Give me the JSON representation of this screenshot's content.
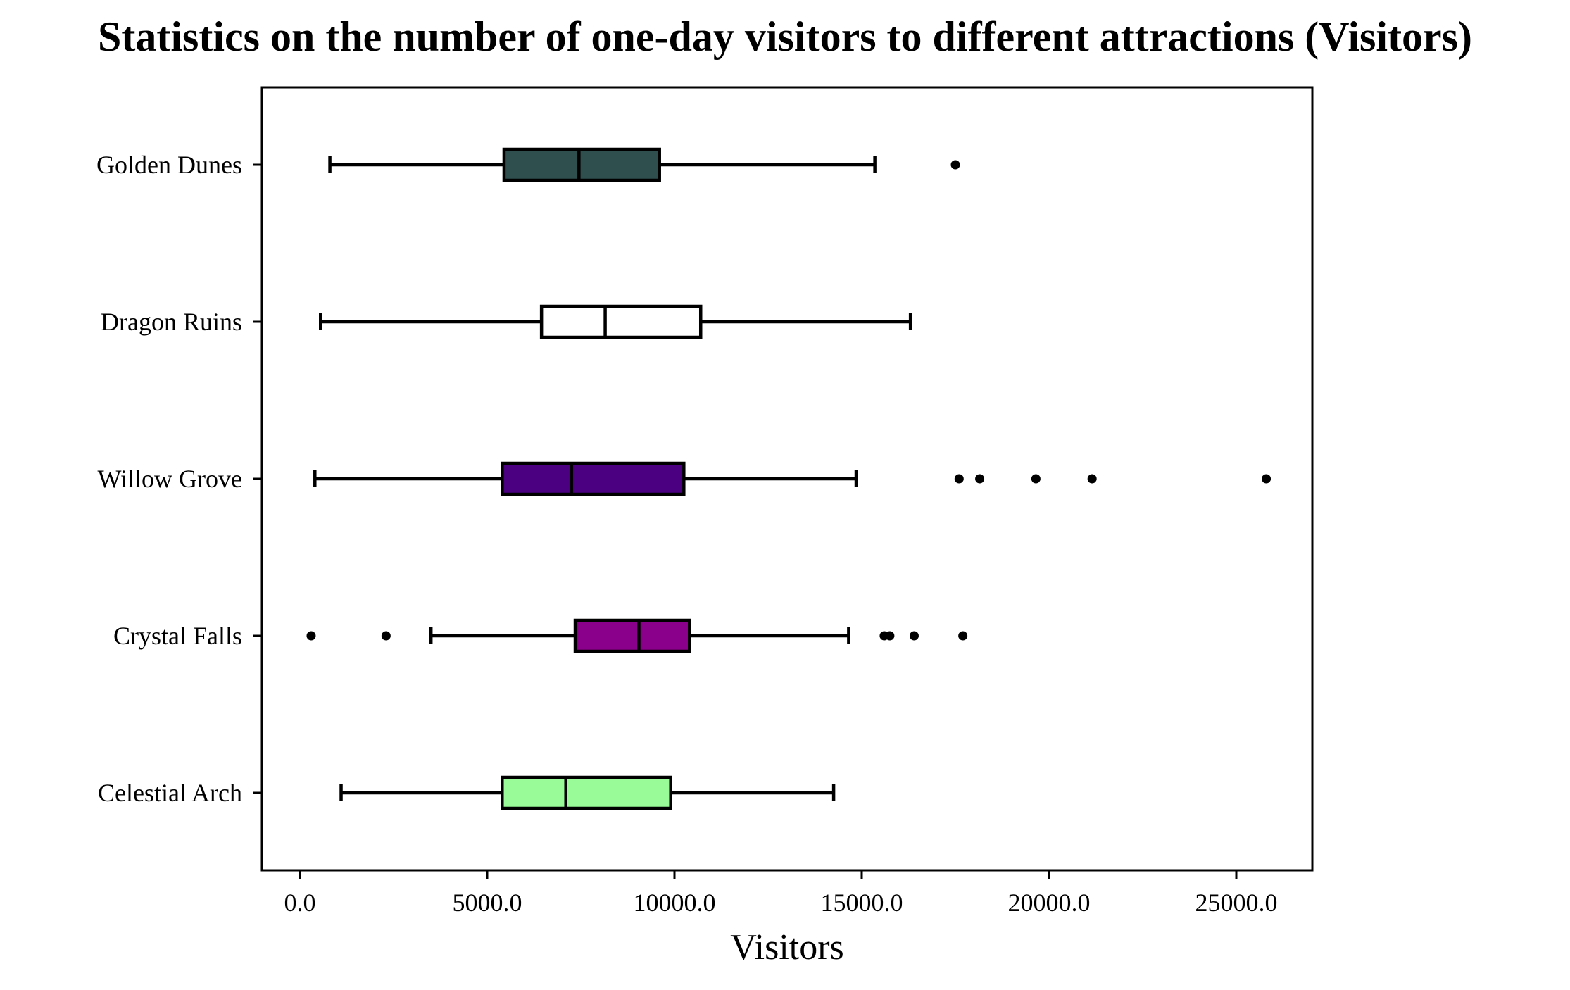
{
  "chart_data": {
    "type": "boxplot",
    "orientation": "horizontal",
    "title": "Statistics on the number of one-day visitors to different attractions (Visitors)",
    "xlabel": "Visitors",
    "ylabel": "",
    "xlim": [
      -1000,
      27100
    ],
    "xticks": [
      0,
      5000,
      10000,
      15000,
      20000,
      25000
    ],
    "xtick_labels": [
      "0.0",
      "5000.0",
      "10000.0",
      "15000.0",
      "20000.0",
      "25000.0"
    ],
    "grid": false,
    "categories_top_to_bottom": [
      "Golden Dunes",
      "Dragon Ruins",
      "Willow Grove",
      "Crystal Falls",
      "Celestial Arch"
    ],
    "series": [
      {
        "name": "Golden Dunes",
        "color": "#2F4F4F",
        "whisker_low": 800,
        "q1": 5450,
        "median": 7450,
        "q3": 9600,
        "whisker_high": 15350,
        "outliers": [
          17500
        ]
      },
      {
        "name": "Dragon Ruins",
        "color": "#FFFFFF",
        "whisker_low": 550,
        "q1": 6450,
        "median": 8150,
        "q3": 10700,
        "whisker_high": 16300,
        "outliers": []
      },
      {
        "name": "Willow Grove",
        "color": "#4B0082",
        "whisker_low": 400,
        "q1": 5400,
        "median": 7250,
        "q3": 10250,
        "whisker_high": 14850,
        "outliers": [
          17600,
          18150,
          19650,
          21150,
          25800
        ]
      },
      {
        "name": "Crystal Falls",
        "color": "#8B008B",
        "whisker_low": 3500,
        "q1": 7350,
        "median": 9050,
        "q3": 10400,
        "whisker_high": 14650,
        "outliers": [
          300,
          2300,
          15600,
          15750,
          16400,
          17700
        ]
      },
      {
        "name": "Celestial Arch",
        "color": "#98FB98",
        "whisker_low": 1100,
        "q1": 5400,
        "median": 7100,
        "q3": 9900,
        "whisker_high": 14250,
        "outliers": []
      }
    ]
  }
}
